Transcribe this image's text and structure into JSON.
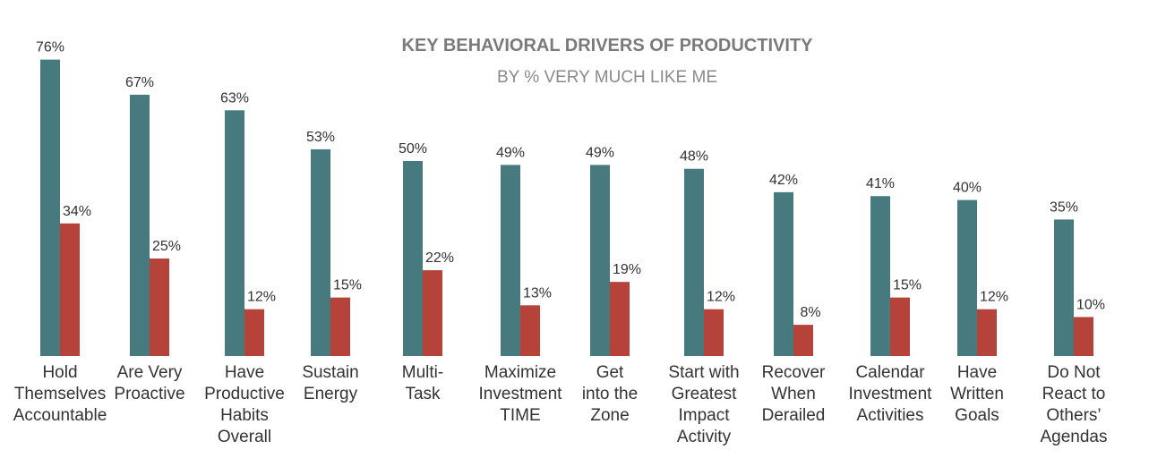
{
  "chart_data": {
    "type": "bar",
    "title": "KEY BEHAVIORAL DRIVERS OF PRODUCTIVITY",
    "subtitle": "BY % VERY MUCH LIKE ME",
    "categories": [
      [
        "Hold",
        "Themselves",
        "Accountable"
      ],
      [
        "Are Very",
        "Proactive"
      ],
      [
        "Have",
        "Productive",
        "Habits",
        "Overall"
      ],
      [
        "Sustain",
        "Energy"
      ],
      [
        "Multi-",
        "Task"
      ],
      [
        "Maximize",
        "Investment",
        "TIME"
      ],
      [
        "Get",
        "into the",
        "Zone"
      ],
      [
        "Start with",
        "Greatest",
        "Impact",
        "Activity"
      ],
      [
        "Recover",
        "When",
        "Derailed"
      ],
      [
        "Calendar",
        "Investment",
        "Activities"
      ],
      [
        "Have",
        "Written",
        "Goals"
      ],
      [
        "Do Not",
        "React to",
        "Others’",
        "Agendas"
      ]
    ],
    "series": [
      {
        "values": [
          76,
          67,
          63,
          53,
          50,
          49,
          49,
          48,
          42,
          41,
          40,
          35
        ],
        "labels": [
          "76%",
          "67%",
          "63%",
          "53%",
          "50%",
          "49%",
          "49%",
          "48%",
          "42%",
          "41%",
          "40%",
          "35%"
        ],
        "color": "#467a7e"
      },
      {
        "values": [
          34,
          25,
          12,
          15,
          22,
          13,
          19,
          12,
          8,
          15,
          12,
          10
        ],
        "labels": [
          "34%",
          "25%",
          "12%",
          "15%",
          "22%",
          "13%",
          "19%",
          "12%",
          "8%",
          "15%",
          "12%",
          "10%"
        ],
        "color": "#b5433a"
      }
    ],
    "ylim": [
      0,
      80
    ],
    "grid": false,
    "legend": "none"
  }
}
